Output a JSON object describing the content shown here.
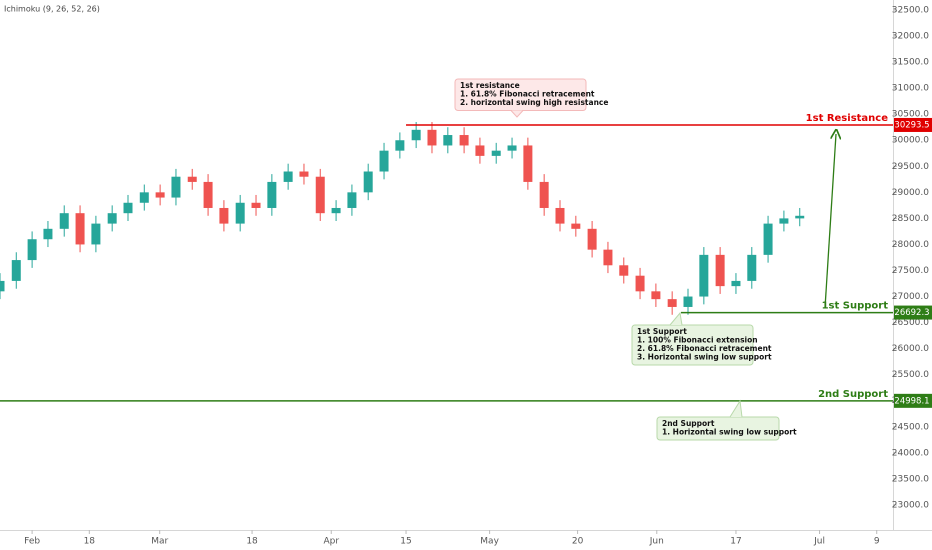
{
  "chart_data": {
    "type": "candlestick",
    "indicator": "Ichimoku (9, 26, 52, 26)",
    "x": [
      -7.3,
      -3.6,
      0,
      3.6,
      7.3,
      10.9,
      14.5,
      18.2,
      21.8,
      25.5,
      29.1,
      32.7,
      36.4,
      40,
      43.6,
      47.3,
      50.9,
      54.5,
      58.2,
      61.8,
      65.5,
      69.1,
      72.7,
      76.4,
      80,
      83.6,
      87.3,
      90.9,
      94.5,
      98.2,
      101.8,
      105.5,
      109.1,
      112.7,
      116.4,
      120,
      123.6,
      127.3,
      130.9,
      134.5,
      138.2,
      141.8,
      145.5,
      149.1,
      152.7,
      156.4,
      160,
      163.6,
      167.3,
      170.9,
      174.5
    ],
    "open": [
      27100,
      27300,
      27700,
      28100,
      28300,
      28600,
      28000,
      28400,
      28600,
      28800,
      29000,
      28900,
      29300,
      29200,
      28700,
      28400,
      28800,
      28700,
      29200,
      29400,
      29300,
      28600,
      28700,
      29000,
      29400,
      29800,
      30000,
      30200,
      29900,
      30100,
      29900,
      29700,
      29800,
      29900,
      29200,
      28700,
      28400,
      28300,
      27900,
      27600,
      27400,
      27100,
      26950,
      26800,
      27000,
      27800,
      27200,
      27300,
      27800,
      28400,
      28500
    ],
    "high": [
      27450,
      27850,
      28250,
      28450,
      28750,
      28750,
      28550,
      28750,
      28950,
      29150,
      29150,
      29450,
      29450,
      29350,
      28850,
      28950,
      28950,
      29350,
      29550,
      29550,
      29450,
      28850,
      29150,
      29550,
      29950,
      30150,
      30350,
      30350,
      30250,
      30250,
      30050,
      29950,
      30050,
      30050,
      29350,
      28850,
      28550,
      28450,
      28050,
      27750,
      27550,
      27250,
      27100,
      27150,
      27950,
      27950,
      27450,
      27950,
      28550,
      28650,
      28700
    ],
    "low": [
      26950,
      27150,
      27550,
      27950,
      28150,
      27850,
      27850,
      28250,
      28450,
      28650,
      28750,
      28750,
      29050,
      28550,
      28250,
      28250,
      28550,
      28550,
      29050,
      29150,
      28450,
      28450,
      28550,
      28850,
      29250,
      29650,
      29850,
      29750,
      29750,
      29750,
      29550,
      29550,
      29650,
      29050,
      28550,
      28250,
      28150,
      27750,
      27450,
      27250,
      26950,
      26800,
      26650,
      26650,
      26850,
      27050,
      27050,
      27150,
      27650,
      28250,
      28350
    ],
    "close": [
      27300,
      27700,
      28100,
      28300,
      28600,
      28000,
      28400,
      28600,
      28800,
      29000,
      28900,
      29300,
      29200,
      28700,
      28400,
      28800,
      28700,
      29200,
      29400,
      29300,
      28600,
      28700,
      29000,
      29400,
      29800,
      30000,
      30200,
      29900,
      30100,
      29900,
      29700,
      29800,
      29900,
      29200,
      28700,
      28400,
      28300,
      27900,
      27600,
      27400,
      27100,
      26950,
      26800,
      27000,
      27800,
      27200,
      27300,
      27800,
      28400,
      28500,
      28550
    ],
    "up_color": "#26a69a",
    "down_color": "#ef5350",
    "xlim": [
      -7.3,
      195.7
    ],
    "xticks": [
      {
        "value": 0,
        "label": "Feb"
      },
      {
        "value": 13,
        "label": "18"
      },
      {
        "value": 29,
        "label": "Mar"
      },
      {
        "value": 50,
        "label": "18"
      },
      {
        "value": 68,
        "label": "Apr"
      },
      {
        "value": 85,
        "label": "15"
      },
      {
        "value": 104,
        "label": "May"
      },
      {
        "value": 124,
        "label": "20"
      },
      {
        "value": 142,
        "label": "Jun"
      },
      {
        "value": 160,
        "label": "17"
      },
      {
        "value": 179,
        "label": "Jul"
      },
      {
        "value": 192,
        "label": "9"
      }
    ],
    "ylim": [
      22135,
      32692
    ],
    "yticks": [
      {
        "value": 23000,
        "label": "23000.0"
      },
      {
        "value": 23500,
        "label": "23500.0"
      },
      {
        "value": 24000,
        "label": "24000.0"
      },
      {
        "value": 24500,
        "label": "24500.0"
      },
      {
        "value": 25000,
        "label": "25000.0"
      },
      {
        "value": 25500,
        "label": "25500.0"
      },
      {
        "value": 26000,
        "label": "26000.0"
      },
      {
        "value": 26500,
        "label": "26500.0"
      },
      {
        "value": 27000,
        "label": "27000.0"
      },
      {
        "value": 27500,
        "label": "27500.0"
      },
      {
        "value": 28000,
        "label": "28000.0"
      },
      {
        "value": 28500,
        "label": "28500.0"
      },
      {
        "value": 29000,
        "label": "29000.0"
      },
      {
        "value": 29500,
        "label": "29500.0"
      },
      {
        "value": 30000,
        "label": "30000.0"
      },
      {
        "value": 30500,
        "label": "30500.0"
      },
      {
        "value": 31000,
        "label": "31000.0"
      },
      {
        "value": 31500,
        "label": "31500.0"
      },
      {
        "value": 32000,
        "label": "32000.0"
      },
      {
        "value": 32500,
        "label": "32500.0"
      }
    ],
    "grid": false,
    "levels": [
      {
        "name": "1st Resistance",
        "value": 30293.5,
        "color": "#e00000",
        "from": 85
      },
      {
        "name": "1st Support",
        "value": 26692.3,
        "color": "#2e7d16",
        "from": 147.5
      },
      {
        "name": "2nd Support",
        "value": 24998.1,
        "color": "#2e7d16",
        "from": -7.3
      }
    ],
    "annotations": [
      {
        "lines": [
          "1st resistance",
          "1. 61.8% Fibonacci retracement",
          "2. horizontal swing high resistance"
        ]
      },
      {
        "lines": [
          "1st Support",
          "1. 100% Fibonacci extension",
          "2. 61.8% Fibonacci retracement",
          "3. Horizontal swing low support"
        ]
      },
      {
        "lines": [
          "2nd Support",
          "1.  Horizontal swing low support"
        ]
      }
    ]
  }
}
